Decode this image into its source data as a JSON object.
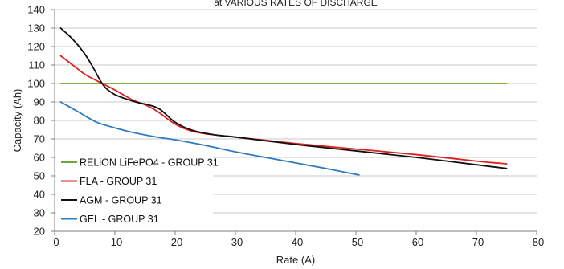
{
  "chart_data": {
    "type": "line",
    "title": "at VARIOUS RATES OF DISCHARGE",
    "xlabel": "Rate (A)",
    "ylabel": "Capacity (Ah)",
    "xlim": [
      0,
      80
    ],
    "ylim": [
      20,
      140
    ],
    "x_ticks": [
      0,
      10,
      20,
      30,
      40,
      50,
      60,
      70,
      80
    ],
    "y_ticks": [
      20,
      30,
      40,
      50,
      60,
      70,
      80,
      90,
      100,
      110,
      120,
      130,
      140
    ],
    "grid": "horizontal",
    "legend_position": "left",
    "series": [
      {
        "name": "RELiON LiFePO4 - GROUP 31",
        "color": "#6aaa2e",
        "points": [
          [
            1,
            100
          ],
          [
            75,
            100
          ]
        ]
      },
      {
        "name": "FLA - GROUP 31",
        "color": "#e0201f",
        "points": [
          [
            1,
            115
          ],
          [
            3,
            110
          ],
          [
            5,
            105
          ],
          [
            7,
            101.5
          ],
          [
            10,
            96.5
          ],
          [
            13,
            91
          ],
          [
            15,
            88.5
          ],
          [
            17,
            85
          ],
          [
            20,
            78
          ],
          [
            23,
            74
          ],
          [
            27,
            72
          ],
          [
            30,
            71
          ],
          [
            40,
            67.5
          ],
          [
            50,
            64.5
          ],
          [
            60,
            61.5
          ],
          [
            70,
            58
          ],
          [
            75,
            56.5
          ]
        ]
      },
      {
        "name": "AGM - GROUP 31",
        "color": "#111111",
        "points": [
          [
            1,
            130
          ],
          [
            3,
            124
          ],
          [
            5,
            116
          ],
          [
            6.5,
            108
          ],
          [
            7.5,
            102
          ],
          [
            8.5,
            97.5
          ],
          [
            10,
            94
          ],
          [
            12,
            91.5
          ],
          [
            14,
            89.5
          ],
          [
            15.5,
            88.5
          ],
          [
            17.5,
            86
          ],
          [
            20,
            79
          ],
          [
            23,
            74.5
          ],
          [
            27,
            72
          ],
          [
            30,
            71
          ],
          [
            40,
            67
          ],
          [
            50,
            63.5
          ],
          [
            60,
            60
          ],
          [
            70,
            56
          ],
          [
            75,
            54
          ]
        ]
      },
      {
        "name": "GEL - GROUP 31",
        "color": "#2f7bbf",
        "points": [
          [
            1,
            90
          ],
          [
            4,
            84.5
          ],
          [
            7,
            79
          ],
          [
            10,
            76
          ],
          [
            13,
            73.5
          ],
          [
            17,
            71
          ],
          [
            20,
            69.5
          ],
          [
            25,
            66.5
          ],
          [
            30,
            63
          ],
          [
            35,
            60
          ],
          [
            40,
            57
          ],
          [
            45,
            54
          ],
          [
            50.5,
            50.5
          ]
        ]
      }
    ]
  }
}
